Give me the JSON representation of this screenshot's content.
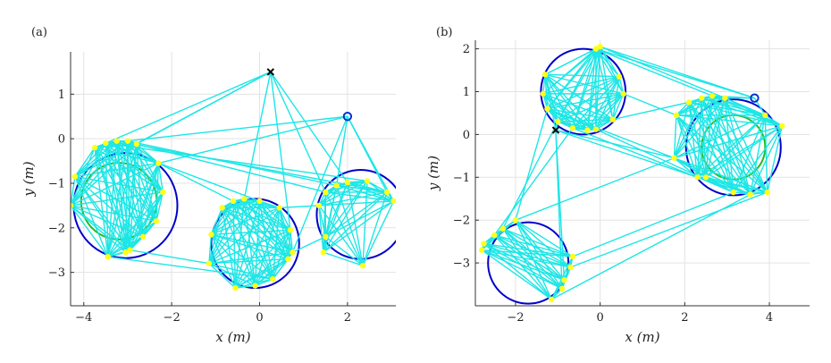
{
  "chart_data": [
    {
      "type": "scatter",
      "panel_label": "(a)",
      "xlabel": "x (m)",
      "ylabel": "y (m)",
      "xlim": [
        -4.3,
        3.1
      ],
      "ylim": [
        -3.75,
        1.95
      ],
      "xticks": [
        -4,
        -2,
        0,
        2
      ],
      "yticks": [
        -3,
        -2,
        -1,
        0,
        1
      ],
      "grid": true,
      "colors": {
        "circle": "#0000cc",
        "inner_circle": "#22bb22",
        "edges": "#1ee6e6",
        "nodes": "#ffff1a",
        "start": "#000000",
        "goal": "#0033cc"
      },
      "start": {
        "x": 0.25,
        "y": 1.5
      },
      "goal": {
        "x": 2.0,
        "y": 0.5
      },
      "circles": [
        {
          "cx": -3.05,
          "cy": -1.5,
          "r": 1.18
        },
        {
          "cx": -0.1,
          "cy": -2.35,
          "r": 1.0
        },
        {
          "cx": 2.3,
          "cy": -1.7,
          "r": 1.0
        }
      ],
      "inner_circles": [
        {
          "cx": -3.2,
          "cy": -1.4,
          "r": 0.86
        }
      ],
      "clusters": [
        {
          "points": [
            [
              -3.5,
              -0.1
            ],
            [
              -3.25,
              -0.05
            ],
            [
              -3.0,
              -0.05
            ],
            [
              -2.8,
              -0.12
            ],
            [
              -3.75,
              -0.2
            ],
            [
              -2.3,
              -0.55
            ],
            [
              -2.2,
              -1.2
            ],
            [
              -4.2,
              -0.85
            ],
            [
              -4.3,
              -1.5
            ],
            [
              -2.35,
              -1.85
            ],
            [
              -2.65,
              -2.2
            ],
            [
              -2.95,
              -2.5
            ],
            [
              -3.05,
              -2.55
            ],
            [
              -3.45,
              -2.65
            ]
          ]
        },
        {
          "points": [
            [
              -0.6,
              -1.4
            ],
            [
              -0.35,
              -1.35
            ],
            [
              0.0,
              -1.4
            ],
            [
              -0.85,
              -1.55
            ],
            [
              0.45,
              -1.55
            ],
            [
              0.7,
              -2.05
            ],
            [
              0.75,
              -2.55
            ],
            [
              0.65,
              -2.7
            ],
            [
              -1.1,
              -2.15
            ],
            [
              -1.15,
              -2.8
            ],
            [
              0.3,
              -3.15
            ],
            [
              -0.1,
              -3.3
            ],
            [
              -0.55,
              -3.35
            ]
          ]
        },
        {
          "points": [
            [
              1.75,
              -1.05
            ],
            [
              2.0,
              -0.98
            ],
            [
              2.45,
              -0.95
            ],
            [
              1.5,
              -1.2
            ],
            [
              2.9,
              -1.2
            ],
            [
              3.05,
              -1.4
            ],
            [
              1.35,
              -1.5
            ],
            [
              1.5,
              -2.2
            ],
            [
              1.45,
              -2.55
            ],
            [
              2.35,
              -2.85
            ]
          ]
        }
      ],
      "bridges": [
        [
          0,
          0,
          1,
          2
        ],
        [
          0,
          5,
          1,
          0
        ],
        [
          0,
          2,
          2,
          0
        ],
        [
          0,
          11,
          1,
          9
        ],
        [
          0,
          3,
          2,
          3
        ],
        [
          0,
          13,
          1,
          10
        ],
        [
          1,
          4,
          2,
          6
        ],
        [
          1,
          6,
          2,
          7
        ],
        [
          0,
          1,
          2,
          4
        ],
        [
          0,
          0,
          2,
          2
        ]
      ],
      "start_links": [
        [
          0,
          0
        ],
        [
          0,
          3
        ],
        [
          0,
          7
        ],
        [
          1,
          1
        ],
        [
          1,
          5
        ],
        [
          2,
          1
        ],
        [
          2,
          3
        ]
      ],
      "goal_links": [
        [
          0,
          2
        ],
        [
          0,
          5
        ],
        [
          1,
          6
        ],
        [
          2,
          0
        ],
        [
          2,
          4
        ],
        [
          2,
          5
        ]
      ]
    },
    {
      "type": "scatter",
      "panel_label": "(b)",
      "xlabel": "x (m)",
      "ylabel": "y (m)",
      "xlim": [
        -2.95,
        4.95
      ],
      "ylim": [
        -4.0,
        2.2
      ],
      "xticks": [
        -2,
        0,
        2,
        4
      ],
      "yticks": [
        -3,
        -2,
        -1,
        0,
        1,
        2
      ],
      "grid": true,
      "colors": {
        "circle": "#0000cc",
        "inner_circle": "#22bb22",
        "edges": "#1ee6e6",
        "nodes": "#ffff1a",
        "start": "#000000",
        "goal": "#0033cc"
      },
      "start": {
        "x": -1.05,
        "y": 0.1
      },
      "goal": {
        "x": 3.65,
        "y": 0.85
      },
      "circles": [
        {
          "cx": -0.4,
          "cy": 1.0,
          "r": 1.0
        },
        {
          "cx": 3.15,
          "cy": -0.3,
          "r": 1.12
        },
        {
          "cx": -1.7,
          "cy": -3.0,
          "r": 0.95
        }
      ],
      "inner_circles": [
        {
          "cx": 3.15,
          "cy": -0.3,
          "r": 0.75
        }
      ],
      "clusters": [
        {
          "points": [
            [
              -0.1,
              2.0
            ],
            [
              0.0,
              2.05
            ],
            [
              -1.3,
              1.4
            ],
            [
              -1.35,
              0.95
            ],
            [
              -1.25,
              0.6
            ],
            [
              -1.0,
              0.3
            ],
            [
              -0.65,
              0.15
            ],
            [
              -0.3,
              0.1
            ],
            [
              -0.1,
              0.12
            ],
            [
              0.3,
              0.35
            ],
            [
              0.55,
              0.95
            ],
            [
              0.45,
              1.35
            ]
          ]
        },
        {
          "points": [
            [
              2.1,
              0.75
            ],
            [
              2.4,
              0.85
            ],
            [
              2.65,
              0.9
            ],
            [
              2.95,
              0.85
            ],
            [
              1.8,
              0.45
            ],
            [
              3.9,
              0.45
            ],
            [
              4.3,
              0.2
            ],
            [
              1.75,
              -0.55
            ],
            [
              2.3,
              -1.0
            ],
            [
              3.15,
              -1.35
            ],
            [
              3.55,
              -1.4
            ],
            [
              3.95,
              -1.35
            ],
            [
              2.5,
              -1.0
            ]
          ]
        },
        {
          "points": [
            [
              -2.0,
              -2.0
            ],
            [
              -2.3,
              -2.2
            ],
            [
              -2.5,
              -2.35
            ],
            [
              -2.75,
              -2.55
            ],
            [
              -2.8,
              -2.7
            ],
            [
              -0.65,
              -2.85
            ],
            [
              -0.7,
              -3.1
            ],
            [
              -0.85,
              -3.4
            ],
            [
              -0.9,
              -3.6
            ],
            [
              -1.15,
              -3.85
            ]
          ]
        }
      ],
      "bridges": [
        [
          0,
          0,
          1,
          2
        ],
        [
          0,
          1,
          1,
          3
        ],
        [
          0,
          9,
          1,
          0
        ],
        [
          0,
          10,
          1,
          4
        ],
        [
          0,
          4,
          1,
          7
        ],
        [
          0,
          6,
          1,
          8
        ],
        [
          0,
          8,
          1,
          9
        ],
        [
          2,
          0,
          1,
          7
        ],
        [
          2,
          5,
          1,
          9
        ],
        [
          2,
          6,
          1,
          11
        ],
        [
          2,
          1,
          0,
          5
        ],
        [
          2,
          2,
          0,
          6
        ],
        [
          2,
          0,
          0,
          4
        ],
        [
          2,
          9,
          1,
          10
        ]
      ],
      "start_links": [
        [
          0,
          2
        ],
        [
          0,
          5
        ],
        [
          2,
          7
        ],
        [
          2,
          8
        ],
        [
          1,
          7
        ],
        [
          1,
          8
        ]
      ],
      "goal_links": [
        [
          0,
          0
        ],
        [
          0,
          1
        ],
        [
          1,
          2
        ],
        [
          1,
          3
        ],
        [
          1,
          5
        ]
      ]
    }
  ]
}
